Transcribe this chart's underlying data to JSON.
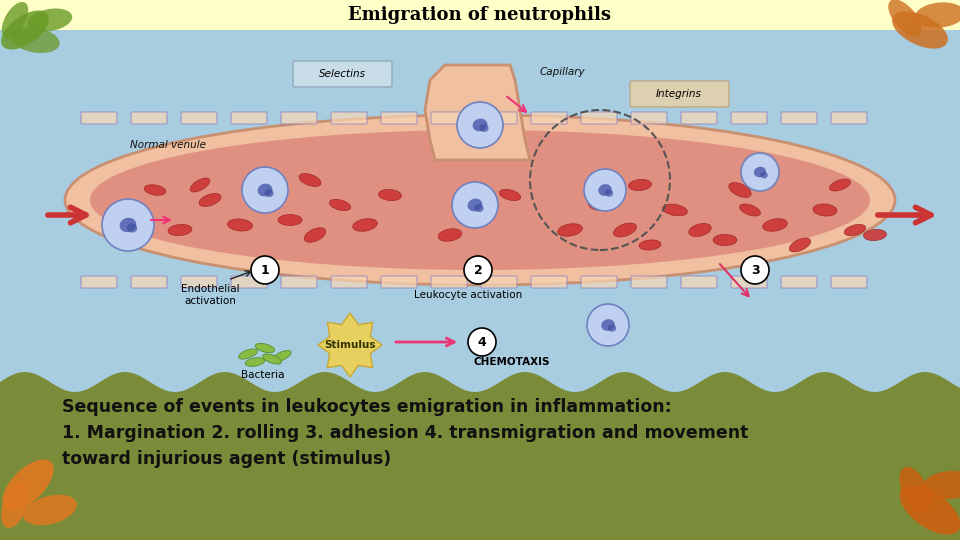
{
  "title": "Emigration of neutrophils",
  "title_fontsize": 13,
  "title_bg_color": "#FFFFC8",
  "sky_color": "#A8CCE0",
  "bottom_bg_color": "#7A8C3A",
  "bottom_text_color": "#111111",
  "line1": "Sequence of events in leukocytes emigration in inflammation:",
  "line2": "1. Margination 2. rolling 3. adhesion 4. transmigration and movement",
  "line3": "toward injurious agent (stimulus)",
  "text_fontsize": 12.5,
  "fig_width": 9.6,
  "fig_height": 5.4,
  "vessel_outer_color": "#F0C0A0",
  "vessel_border_color": "#C89070",
  "vessel_inner_color": "#E09080",
  "rbc_color": "#CC3333",
  "rbc_edge_color": "#992222",
  "wbc_color": "#C0D0F0",
  "wbc_edge_color": "#7080C0",
  "wbc_nuc_color": "#5060B0",
  "flow_arrow_color": "#CC3333",
  "pink_arrow_color": "#EE3377",
  "num_circle_color": "white",
  "sel_box_color": "#C8DDE8",
  "int_box_color": "#DDD0B0",
  "stim_color": "#E8D060",
  "bacteria_color": "#88BB44",
  "bacteria_edge": "#448822",
  "leaf_tl": "#6A9A28",
  "leaf_tr": "#CC7020",
  "leaf_bl": "#E07820",
  "leaf_br": "#CC6010"
}
